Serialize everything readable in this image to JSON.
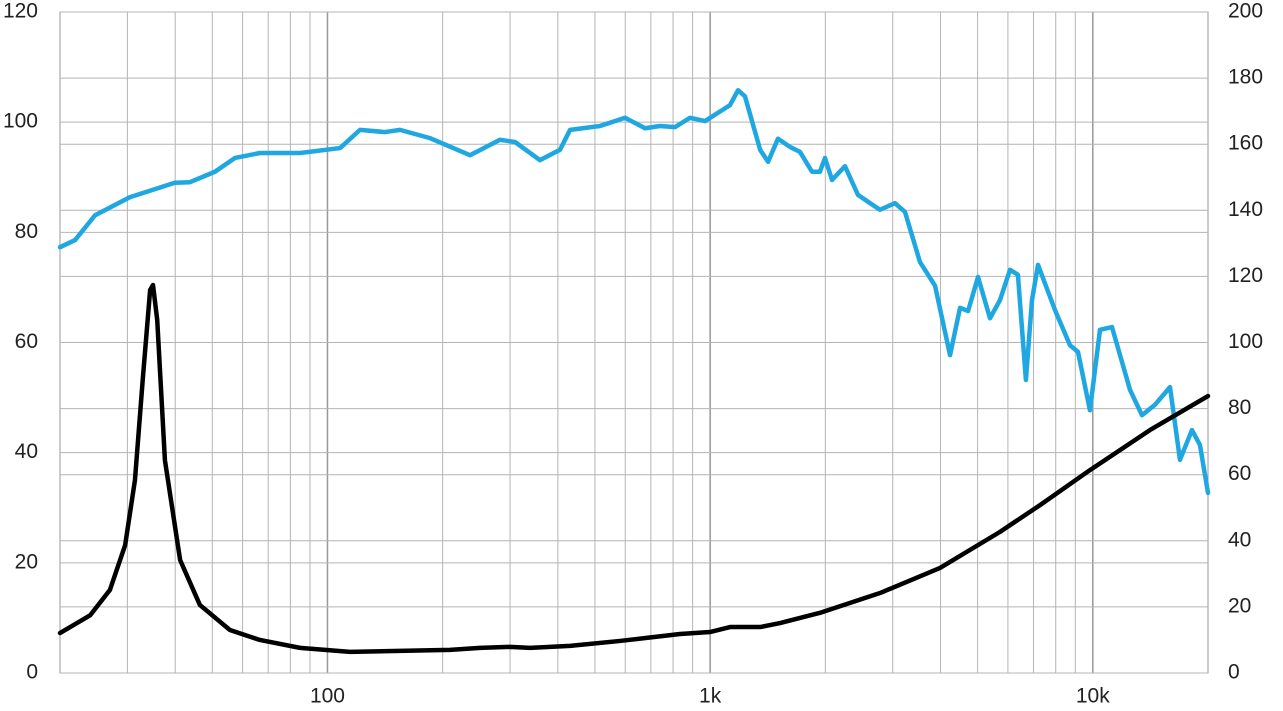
{
  "chart_data": {
    "type": "line",
    "xscale": "log",
    "xlim": [
      20,
      20000
    ],
    "xticks": [
      {
        "value": 100,
        "label": "100"
      },
      {
        "value": 1000,
        "label": "1k"
      },
      {
        "value": 10000,
        "label": "10k"
      }
    ],
    "x_minor_grid": true,
    "ylim": [
      0,
      120
    ],
    "yticks": [
      0,
      20,
      40,
      60,
      80,
      100,
      120
    ],
    "y2lim": [
      0,
      200
    ],
    "y2ticks": [
      0,
      20,
      40,
      60,
      80,
      100,
      120,
      140,
      160,
      180,
      200
    ],
    "grid": true,
    "series": [
      {
        "color": "#1ea7e1",
        "axis": "y",
        "x": [
          20,
          21.9,
          24.7,
          30.5,
          39.9,
          43.7,
          50.8,
          57.3,
          66.6,
          84.8,
          107.9,
          121.6,
          141.4,
          154.7,
          185.4,
          235.8,
          282.4,
          309.1,
          359.2,
          405.3,
          430.4,
          515.5,
          599.3,
          675.8,
          739.6,
          809.5,
          885.9,
          969.6,
          1127,
          1183,
          1233,
          1351,
          1417,
          1504,
          1617,
          1717,
          1846,
          1936,
          1996,
          2082,
          2251,
          2434,
          2617,
          2779,
          3041,
          3230,
          3535,
          3870,
          4236,
          4498,
          4720,
          5012,
          5387,
          5721,
          6075,
          6372,
          6686,
          6935,
          7191,
          7964,
          8717,
          9146,
          9831,
          10441,
          11224,
          12510,
          13444,
          14538,
          15912,
          16896,
          18160,
          19054,
          20000
        ],
        "values": [
          77.3,
          78.6,
          83.1,
          86.4,
          89.0,
          89.1,
          91.0,
          93.5,
          94.4,
          94.4,
          95.3,
          98.6,
          98.2,
          98.6,
          97.1,
          94.0,
          96.8,
          96.4,
          93.1,
          95.0,
          98.6,
          99.3,
          100.8,
          98.9,
          99.3,
          99.1,
          100.8,
          100.2,
          103.1,
          105.8,
          104.7,
          95.0,
          92.8,
          97.0,
          95.5,
          94.6,
          91.0,
          91.0,
          93.5,
          89.5,
          92.0,
          86.8,
          85.3,
          84.1,
          85.3,
          83.7,
          74.6,
          70.3,
          57.7,
          66.3,
          65.7,
          71.9,
          64.4,
          67.7,
          73.2,
          72.3,
          53.2,
          67.7,
          74.1,
          65.9,
          59.5,
          58.3,
          47.7,
          62.3,
          62.8,
          51.4,
          46.8,
          48.7,
          51.9,
          38.7,
          44.1,
          41.4,
          32.7
        ]
      },
      {
        "color": "#000000",
        "axis": "y2",
        "x": [
          20,
          24.0,
          27.0,
          29.6,
          31.4,
          32.9,
          34.4,
          35.0,
          35.9,
          37.6,
          41.2,
          46.4,
          55.6,
          66.6,
          84.8,
          114.5,
          209.1,
          250.4,
          300.0,
          338.3,
          430.4,
          581.5,
          834.1,
          999,
          1127,
          1351,
          1523,
          1936,
          2779,
          3988,
          5721,
          7278,
          9831,
          14100,
          20000
        ],
        "values": [
          12.1,
          17.5,
          25.1,
          38.7,
          58.4,
          88.7,
          115.9,
          117.4,
          106.8,
          64.4,
          34.2,
          20.6,
          13.0,
          10.0,
          7.6,
          6.4,
          7.0,
          7.6,
          7.9,
          7.6,
          8.2,
          9.7,
          11.8,
          12.4,
          13.9,
          13.9,
          15.1,
          18.2,
          24.2,
          31.8,
          42.7,
          50.8,
          61.4,
          73.5,
          83.8
        ]
      }
    ]
  }
}
